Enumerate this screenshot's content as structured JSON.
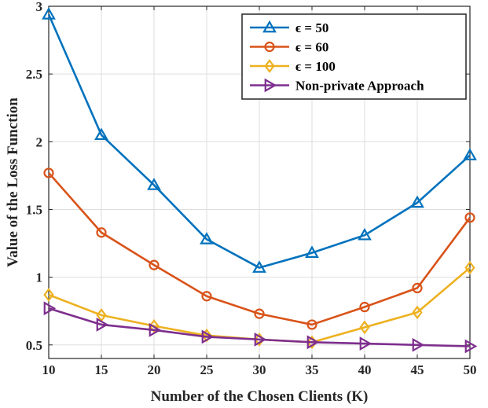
{
  "chart_data": {
    "type": "line",
    "xlabel": "Number of the Chosen Clients (K)",
    "ylabel": "Value of the Loss Function",
    "x": [
      10,
      15,
      20,
      25,
      30,
      35,
      40,
      45,
      50
    ],
    "xlim": [
      10,
      50
    ],
    "ylim": [
      0.4,
      3
    ],
    "xticks": [
      "10",
      "15",
      "20",
      "25",
      "30",
      "35",
      "40",
      "45",
      "50"
    ],
    "yticks": [
      "0.5",
      "1",
      "1.5",
      "2",
      "2.5",
      "3"
    ],
    "ytick_values": [
      0.5,
      1,
      1.5,
      2,
      2.5,
      3
    ],
    "grid": true,
    "legend_position": "top-right",
    "series": [
      {
        "name": "ϵ =  50",
        "marker": "triangle-up",
        "color": "#0072BD",
        "values": [
          2.94,
          2.05,
          1.68,
          1.28,
          1.07,
          1.18,
          1.31,
          1.55,
          1.9
        ]
      },
      {
        "name": "ϵ =  60",
        "marker": "circle",
        "color": "#D95319",
        "values": [
          1.77,
          1.33,
          1.09,
          0.86,
          0.73,
          0.65,
          0.78,
          0.92,
          1.44
        ]
      },
      {
        "name": "ϵ = 100",
        "marker": "diamond",
        "color": "#EDB120",
        "values": [
          0.87,
          0.72,
          0.64,
          0.57,
          0.54,
          0.52,
          0.63,
          0.74,
          1.07
        ]
      },
      {
        "name": "Non-private Approach",
        "marker": "triangle-right",
        "color": "#7E2F8E",
        "values": [
          0.77,
          0.65,
          0.61,
          0.56,
          0.54,
          0.52,
          0.51,
          0.5,
          0.49
        ]
      }
    ]
  }
}
